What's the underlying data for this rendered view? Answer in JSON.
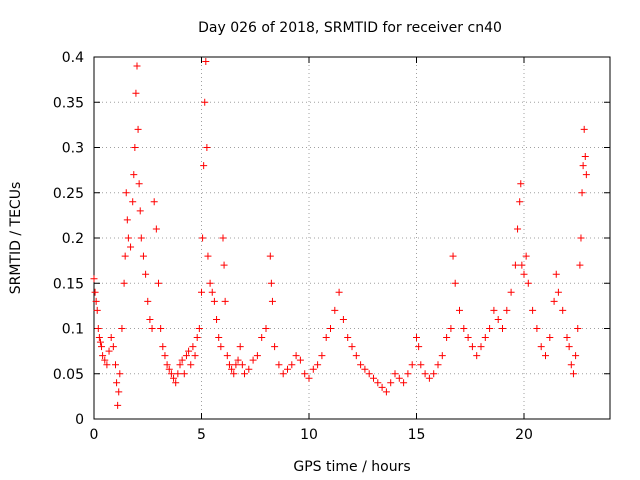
{
  "chart_data": {
    "type": "scatter",
    "title": "Day 026 of 2018, SRMTID for receiver cn40",
    "xlabel": "GPS time / hours",
    "ylabel": "SRMTID / TECUs",
    "xlim": [
      0,
      24
    ],
    "ylim": [
      0,
      0.4
    ],
    "xticks": [
      0,
      5,
      10,
      15,
      20
    ],
    "xtick_labels": [
      "0",
      "5",
      "10",
      "15",
      "20"
    ],
    "yticks": [
      0,
      0.05,
      0.1,
      0.15,
      0.2,
      0.25,
      0.3,
      0.35,
      0.4
    ],
    "ytick_labels": [
      "0",
      "0.05",
      "0.1",
      "0.15",
      "0.2",
      "0.25",
      "0.3",
      "0.35",
      "0.4"
    ],
    "grid": true,
    "marker": "+",
    "color": "#ff0000",
    "series": [
      {
        "name": "SRMTID",
        "points": [
          [
            0.0,
            0.155
          ],
          [
            0.05,
            0.14
          ],
          [
            0.1,
            0.13
          ],
          [
            0.15,
            0.12
          ],
          [
            0.2,
            0.1
          ],
          [
            0.25,
            0.09
          ],
          [
            0.3,
            0.085
          ],
          [
            0.35,
            0.08
          ],
          [
            0.4,
            0.07
          ],
          [
            0.5,
            0.065
          ],
          [
            0.6,
            0.06
          ],
          [
            0.7,
            0.075
          ],
          [
            0.8,
            0.09
          ],
          [
            0.9,
            0.08
          ],
          [
            1.0,
            0.06
          ],
          [
            1.05,
            0.04
          ],
          [
            1.1,
            0.015
          ],
          [
            1.15,
            0.03
          ],
          [
            1.2,
            0.05
          ],
          [
            1.3,
            0.1
          ],
          [
            1.4,
            0.15
          ],
          [
            1.45,
            0.18
          ],
          [
            1.5,
            0.25
          ],
          [
            1.55,
            0.22
          ],
          [
            1.6,
            0.2
          ],
          [
            1.7,
            0.19
          ],
          [
            1.8,
            0.24
          ],
          [
            1.85,
            0.27
          ],
          [
            1.9,
            0.3
          ],
          [
            1.95,
            0.36
          ],
          [
            2.0,
            0.39
          ],
          [
            2.05,
            0.32
          ],
          [
            2.1,
            0.26
          ],
          [
            2.15,
            0.23
          ],
          [
            2.2,
            0.2
          ],
          [
            2.3,
            0.18
          ],
          [
            2.4,
            0.16
          ],
          [
            2.5,
            0.13
          ],
          [
            2.6,
            0.11
          ],
          [
            2.7,
            0.1
          ],
          [
            2.8,
            0.24
          ],
          [
            2.9,
            0.21
          ],
          [
            3.0,
            0.15
          ],
          [
            3.1,
            0.1
          ],
          [
            3.2,
            0.08
          ],
          [
            3.3,
            0.07
          ],
          [
            3.4,
            0.06
          ],
          [
            3.5,
            0.055
          ],
          [
            3.6,
            0.05
          ],
          [
            3.7,
            0.045
          ],
          [
            3.8,
            0.04
          ],
          [
            3.9,
            0.05
          ],
          [
            4.0,
            0.06
          ],
          [
            4.1,
            0.065
          ],
          [
            4.2,
            0.05
          ],
          [
            4.3,
            0.07
          ],
          [
            4.4,
            0.075
          ],
          [
            4.5,
            0.06
          ],
          [
            4.6,
            0.08
          ],
          [
            4.7,
            0.07
          ],
          [
            4.8,
            0.09
          ],
          [
            4.9,
            0.1
          ],
          [
            5.0,
            0.14
          ],
          [
            5.05,
            0.2
          ],
          [
            5.1,
            0.28
          ],
          [
            5.15,
            0.35
          ],
          [
            5.2,
            0.395
          ],
          [
            5.25,
            0.3
          ],
          [
            5.3,
            0.18
          ],
          [
            5.4,
            0.15
          ],
          [
            5.5,
            0.14
          ],
          [
            5.6,
            0.13
          ],
          [
            5.7,
            0.11
          ],
          [
            5.8,
            0.09
          ],
          [
            5.9,
            0.08
          ],
          [
            6.0,
            0.2
          ],
          [
            6.05,
            0.17
          ],
          [
            6.1,
            0.13
          ],
          [
            6.2,
            0.07
          ],
          [
            6.3,
            0.06
          ],
          [
            6.4,
            0.055
          ],
          [
            6.5,
            0.05
          ],
          [
            6.6,
            0.06
          ],
          [
            6.7,
            0.065
          ],
          [
            6.8,
            0.08
          ],
          [
            6.9,
            0.06
          ],
          [
            7.0,
            0.05
          ],
          [
            7.2,
            0.055
          ],
          [
            7.4,
            0.065
          ],
          [
            7.6,
            0.07
          ],
          [
            7.8,
            0.09
          ],
          [
            8.0,
            0.1
          ],
          [
            8.2,
            0.18
          ],
          [
            8.25,
            0.15
          ],
          [
            8.3,
            0.13
          ],
          [
            8.4,
            0.08
          ],
          [
            8.6,
            0.06
          ],
          [
            8.8,
            0.05
          ],
          [
            9.0,
            0.055
          ],
          [
            9.2,
            0.06
          ],
          [
            9.4,
            0.07
          ],
          [
            9.6,
            0.065
          ],
          [
            9.8,
            0.05
          ],
          [
            10.0,
            0.045
          ],
          [
            10.2,
            0.055
          ],
          [
            10.4,
            0.06
          ],
          [
            10.6,
            0.07
          ],
          [
            10.8,
            0.09
          ],
          [
            11.0,
            0.1
          ],
          [
            11.2,
            0.12
          ],
          [
            11.4,
            0.14
          ],
          [
            11.6,
            0.11
          ],
          [
            11.8,
            0.09
          ],
          [
            12.0,
            0.08
          ],
          [
            12.2,
            0.07
          ],
          [
            12.4,
            0.06
          ],
          [
            12.6,
            0.055
          ],
          [
            12.8,
            0.05
          ],
          [
            13.0,
            0.045
          ],
          [
            13.2,
            0.04
          ],
          [
            13.4,
            0.035
          ],
          [
            13.6,
            0.03
          ],
          [
            13.8,
            0.04
          ],
          [
            14.0,
            0.05
          ],
          [
            14.2,
            0.045
          ],
          [
            14.4,
            0.04
          ],
          [
            14.6,
            0.05
          ],
          [
            14.8,
            0.06
          ],
          [
            15.0,
            0.09
          ],
          [
            15.1,
            0.08
          ],
          [
            15.2,
            0.06
          ],
          [
            15.4,
            0.05
          ],
          [
            15.6,
            0.045
          ],
          [
            15.8,
            0.05
          ],
          [
            16.0,
            0.06
          ],
          [
            16.2,
            0.07
          ],
          [
            16.4,
            0.09
          ],
          [
            16.6,
            0.1
          ],
          [
            16.7,
            0.18
          ],
          [
            16.8,
            0.15
          ],
          [
            17.0,
            0.12
          ],
          [
            17.2,
            0.1
          ],
          [
            17.4,
            0.09
          ],
          [
            17.6,
            0.08
          ],
          [
            17.8,
            0.07
          ],
          [
            18.0,
            0.08
          ],
          [
            18.2,
            0.09
          ],
          [
            18.4,
            0.1
          ],
          [
            18.6,
            0.12
          ],
          [
            18.8,
            0.11
          ],
          [
            19.0,
            0.1
          ],
          [
            19.2,
            0.12
          ],
          [
            19.4,
            0.14
          ],
          [
            19.6,
            0.17
          ],
          [
            19.7,
            0.21
          ],
          [
            19.8,
            0.24
          ],
          [
            19.85,
            0.26
          ],
          [
            19.9,
            0.17
          ],
          [
            20.0,
            0.16
          ],
          [
            20.1,
            0.18
          ],
          [
            20.2,
            0.15
          ],
          [
            20.4,
            0.12
          ],
          [
            20.6,
            0.1
          ],
          [
            20.8,
            0.08
          ],
          [
            21.0,
            0.07
          ],
          [
            21.2,
            0.09
          ],
          [
            21.4,
            0.13
          ],
          [
            21.5,
            0.16
          ],
          [
            21.6,
            0.14
          ],
          [
            21.8,
            0.12
          ],
          [
            22.0,
            0.09
          ],
          [
            22.1,
            0.08
          ],
          [
            22.2,
            0.06
          ],
          [
            22.3,
            0.05
          ],
          [
            22.4,
            0.07
          ],
          [
            22.5,
            0.1
          ],
          [
            22.6,
            0.17
          ],
          [
            22.65,
            0.2
          ],
          [
            22.7,
            0.25
          ],
          [
            22.75,
            0.28
          ],
          [
            22.8,
            0.32
          ],
          [
            22.85,
            0.29
          ],
          [
            22.9,
            0.27
          ]
        ]
      }
    ]
  }
}
